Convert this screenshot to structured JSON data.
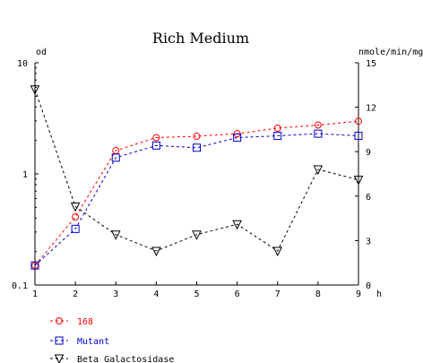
{
  "chart_data": {
    "type": "line",
    "title": "Rich Medium",
    "x": [
      1,
      2,
      3,
      4,
      5,
      6,
      7,
      8,
      9
    ],
    "xlabel": "h",
    "xlim": [
      1,
      9
    ],
    "xticks": [
      "1",
      "2",
      "3",
      "4",
      "5",
      "6",
      "7",
      "8",
      "9"
    ],
    "y_left": {
      "label": "od",
      "scale": "log",
      "lim": [
        0.1,
        10
      ],
      "ticks": [
        {
          "value": 10,
          "label": "10"
        },
        {
          "value": 1,
          "label": "1"
        },
        {
          "value": 0.1,
          "label": "0.1"
        }
      ]
    },
    "y_right": {
      "label": "nmole/min/mg",
      "scale": "linear",
      "lim": [
        0,
        15
      ],
      "ticks": [
        {
          "value": 15,
          "label": "15"
        },
        {
          "value": 12,
          "label": "12"
        },
        {
          "value": 9,
          "label": "9"
        },
        {
          "value": 6,
          "label": "6"
        },
        {
          "value": 3,
          "label": "3"
        },
        {
          "value": 0,
          "label": "0"
        }
      ]
    },
    "grid": false,
    "legend": "bottom-left",
    "series": [
      {
        "name": "168",
        "axis": "left",
        "color": "#ff0000",
        "marker": "circle",
        "values": [
          0.15,
          0.41,
          1.62,
          2.12,
          2.18,
          2.3,
          2.58,
          2.75,
          2.98
        ]
      },
      {
        "name": "Mutant",
        "axis": "left",
        "color": "#0000cc",
        "marker": "square",
        "values": [
          0.15,
          0.32,
          1.4,
          1.8,
          1.72,
          2.12,
          2.2,
          2.3,
          2.2
        ]
      },
      {
        "name": "Beta Galactosidase",
        "axis": "right",
        "color": "#000000",
        "marker": "triangle-down",
        "values": [
          13.2,
          5.3,
          3.4,
          2.3,
          3.4,
          4.1,
          2.3,
          7.8,
          7.1
        ]
      }
    ]
  }
}
